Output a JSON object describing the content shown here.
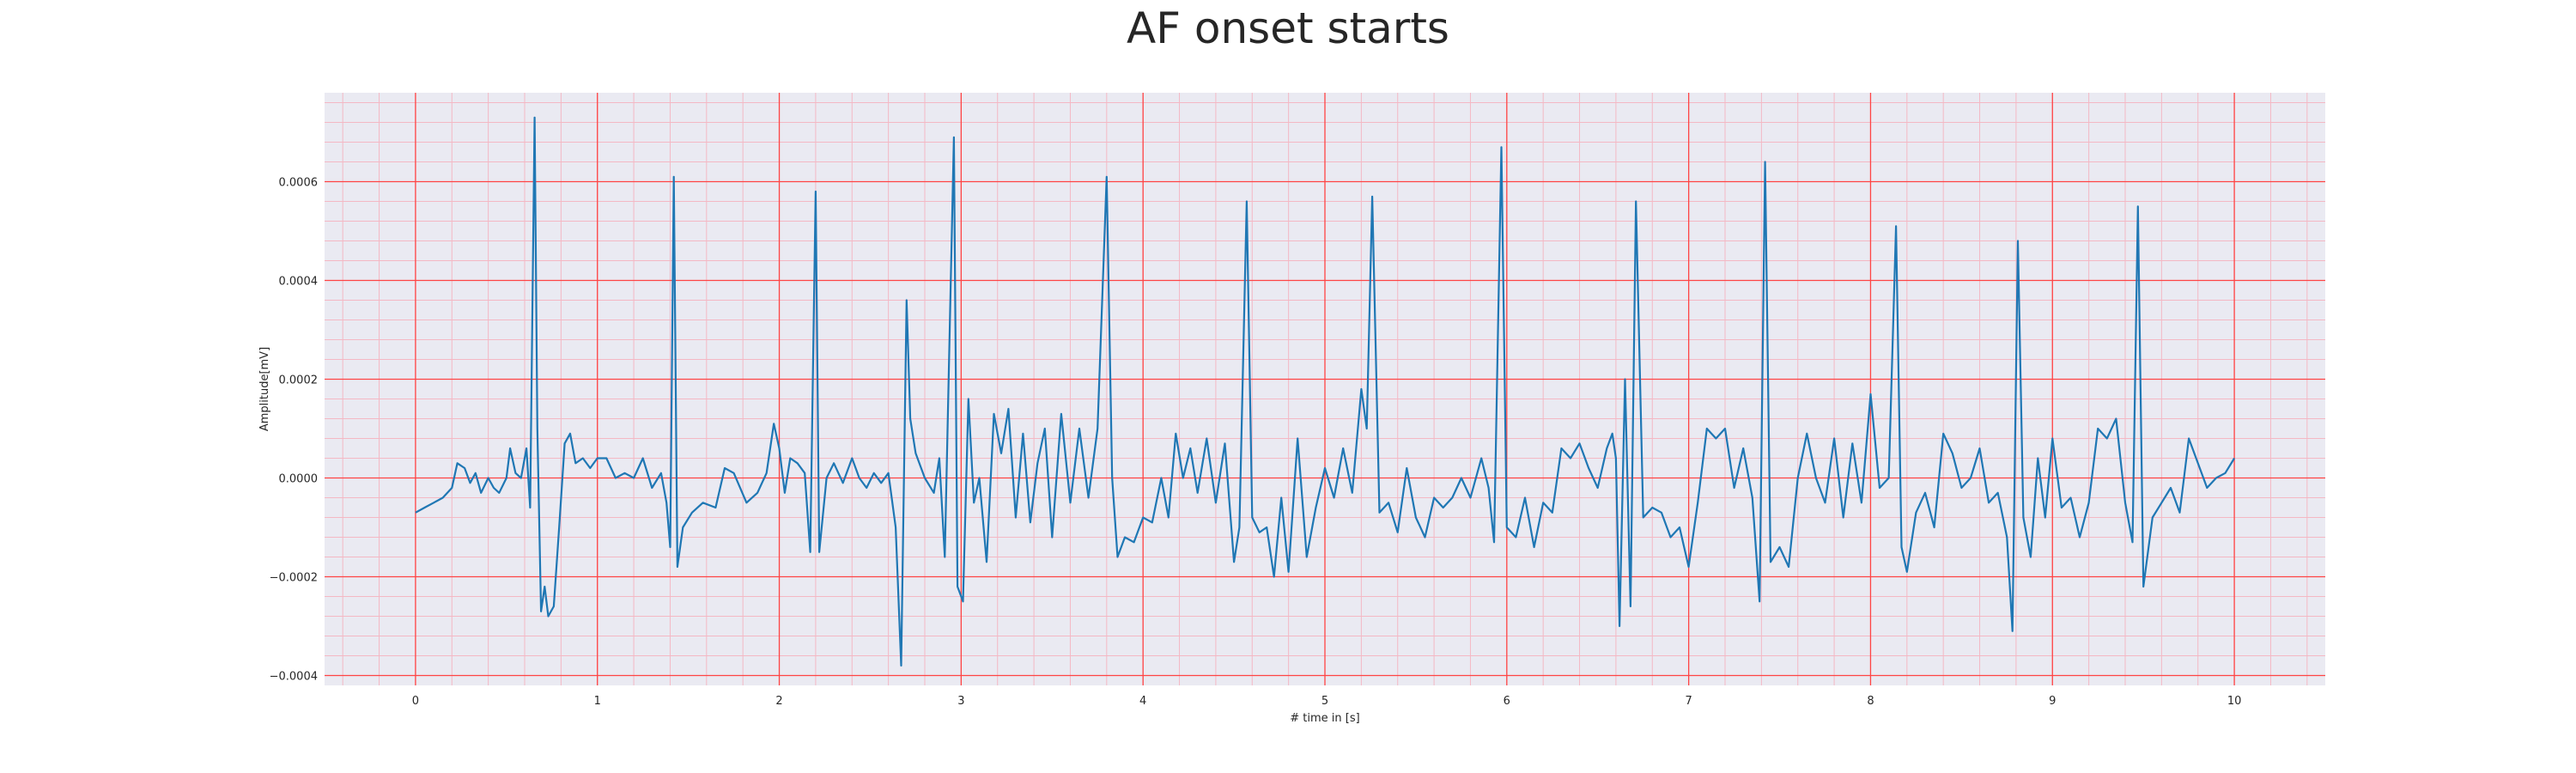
{
  "chart_data": {
    "type": "line",
    "title": "AF onset starts",
    "xlabel": "# time in [s]",
    "ylabel": "Amplitude[mV]",
    "xlim": [
      -0.5,
      10.5
    ],
    "ylim": [
      -0.00042,
      0.00078
    ],
    "x_ticks": [
      0,
      1,
      2,
      3,
      4,
      5,
      6,
      7,
      8,
      9,
      10
    ],
    "y_ticks": [
      -0.0004,
      -0.0002,
      0.0,
      0.0002,
      0.0004,
      0.0006
    ],
    "y_tick_labels": [
      "−0.0004",
      "−0.0002",
      "0.0000",
      "0.0002",
      "0.0004",
      "0.0006"
    ],
    "grid": true,
    "minor_grid": true,
    "colors": {
      "line": "#1f77b4",
      "major_grid": "#ff4444",
      "minor_grid": "#f4b8c4",
      "background": "#eaeaf2"
    },
    "series": [
      {
        "values": [
          [
            0.0,
            -7e-05
          ],
          [
            0.05,
            -6e-05
          ],
          [
            0.1,
            -5e-05
          ],
          [
            0.15,
            -4e-05
          ],
          [
            0.2,
            -2e-05
          ],
          [
            0.23,
            3e-05
          ],
          [
            0.27,
            2e-05
          ],
          [
            0.3,
            -1e-05
          ],
          [
            0.33,
            1e-05
          ],
          [
            0.36,
            -3e-05
          ],
          [
            0.4,
            0.0
          ],
          [
            0.43,
            -2e-05
          ],
          [
            0.46,
            -3e-05
          ],
          [
            0.5,
            0.0
          ],
          [
            0.52,
            6e-05
          ],
          [
            0.55,
            1e-05
          ],
          [
            0.58,
            0.0
          ],
          [
            0.61,
            6e-05
          ],
          [
            0.63,
            -6e-05
          ],
          [
            0.655,
            0.00073
          ],
          [
            0.67,
            0.0001
          ],
          [
            0.69,
            -0.00027
          ],
          [
            0.71,
            -0.00022
          ],
          [
            0.73,
            -0.00028
          ],
          [
            0.76,
            -0.00026
          ],
          [
            0.79,
            -0.0001
          ],
          [
            0.82,
            7e-05
          ],
          [
            0.85,
            9e-05
          ],
          [
            0.88,
            3e-05
          ],
          [
            0.92,
            4e-05
          ],
          [
            0.96,
            2e-05
          ],
          [
            1.0,
            4e-05
          ],
          [
            1.05,
            4e-05
          ],
          [
            1.1,
            0.0
          ],
          [
            1.15,
            1e-05
          ],
          [
            1.2,
            0.0
          ],
          [
            1.25,
            4e-05
          ],
          [
            1.3,
            -2e-05
          ],
          [
            1.35,
            1e-05
          ],
          [
            1.38,
            -5e-05
          ],
          [
            1.4,
            -0.00014
          ],
          [
            1.42,
            0.00061
          ],
          [
            1.44,
            -0.00018
          ],
          [
            1.47,
            -0.0001
          ],
          [
            1.52,
            -7e-05
          ],
          [
            1.58,
            -5e-05
          ],
          [
            1.65,
            -6e-05
          ],
          [
            1.7,
            2e-05
          ],
          [
            1.75,
            1e-05
          ],
          [
            1.82,
            -5e-05
          ],
          [
            1.88,
            -3e-05
          ],
          [
            1.93,
            1e-05
          ],
          [
            1.97,
            0.00011
          ],
          [
            2.0,
            6e-05
          ],
          [
            2.03,
            -3e-05
          ],
          [
            2.06,
            4e-05
          ],
          [
            2.1,
            3e-05
          ],
          [
            2.14,
            1e-05
          ],
          [
            2.17,
            -0.00015
          ],
          [
            2.2,
            0.00058
          ],
          [
            2.22,
            -0.00015
          ],
          [
            2.26,
            0.0
          ],
          [
            2.3,
            3e-05
          ],
          [
            2.35,
            -1e-05
          ],
          [
            2.4,
            4e-05
          ],
          [
            2.44,
            0.0
          ],
          [
            2.48,
            -2e-05
          ],
          [
            2.52,
            1e-05
          ],
          [
            2.56,
            -1e-05
          ],
          [
            2.6,
            1e-05
          ],
          [
            2.64,
            -0.0001
          ],
          [
            2.67,
            -0.00038
          ],
          [
            2.7,
            0.00036
          ],
          [
            2.72,
            0.00012
          ],
          [
            2.75,
            5e-05
          ],
          [
            2.8,
            0.0
          ],
          [
            2.85,
            -3e-05
          ],
          [
            2.88,
            4e-05
          ],
          [
            2.91,
            -0.00016
          ],
          [
            2.96,
            0.00069
          ],
          [
            2.98,
            -0.00022
          ],
          [
            3.01,
            -0.00025
          ],
          [
            3.04,
            0.00016
          ],
          [
            3.07,
            -5e-05
          ],
          [
            3.1,
            0.0
          ],
          [
            3.14,
            -0.00017
          ],
          [
            3.18,
            0.00013
          ],
          [
            3.22,
            5e-05
          ],
          [
            3.26,
            0.00014
          ],
          [
            3.3,
            -8e-05
          ],
          [
            3.34,
            9e-05
          ],
          [
            3.38,
            -9e-05
          ],
          [
            3.42,
            3e-05
          ],
          [
            3.46,
            0.0001
          ],
          [
            3.5,
            -0.00012
          ],
          [
            3.55,
            0.00013
          ],
          [
            3.6,
            -5e-05
          ],
          [
            3.65,
            0.0001
          ],
          [
            3.7,
            -4e-05
          ],
          [
            3.75,
            0.0001
          ],
          [
            3.8,
            0.00061
          ],
          [
            3.83,
            0.0
          ],
          [
            3.86,
            -0.00016
          ],
          [
            3.9,
            -0.00012
          ],
          [
            3.95,
            -0.00013
          ],
          [
            4.0,
            -8e-05
          ],
          [
            4.05,
            -9e-05
          ],
          [
            4.1,
            0.0
          ],
          [
            4.14,
            -8e-05
          ],
          [
            4.18,
            9e-05
          ],
          [
            4.22,
            0.0
          ],
          [
            4.26,
            6e-05
          ],
          [
            4.3,
            -3e-05
          ],
          [
            4.35,
            8e-05
          ],
          [
            4.4,
            -5e-05
          ],
          [
            4.45,
            7e-05
          ],
          [
            4.5,
            -0.00017
          ],
          [
            4.53,
            -0.0001
          ],
          [
            4.57,
            0.00056
          ],
          [
            4.6,
            -8e-05
          ],
          [
            4.64,
            -0.00011
          ],
          [
            4.68,
            -0.0001
          ],
          [
            4.72,
            -0.0002
          ],
          [
            4.76,
            -4e-05
          ],
          [
            4.8,
            -0.00019
          ],
          [
            4.85,
            8e-05
          ],
          [
            4.9,
            -0.00016
          ],
          [
            4.95,
            -6e-05
          ],
          [
            5.0,
            2e-05
          ],
          [
            5.05,
            -4e-05
          ],
          [
            5.1,
            6e-05
          ],
          [
            5.15,
            -3e-05
          ],
          [
            5.2,
            0.00018
          ],
          [
            5.23,
            0.0001
          ],
          [
            5.26,
            0.00057
          ],
          [
            5.3,
            -7e-05
          ],
          [
            5.35,
            -5e-05
          ],
          [
            5.4,
            -0.00011
          ],
          [
            5.45,
            2e-05
          ],
          [
            5.5,
            -8e-05
          ],
          [
            5.55,
            -0.00012
          ],
          [
            5.6,
            -4e-05
          ],
          [
            5.65,
            -6e-05
          ],
          [
            5.7,
            -4e-05
          ],
          [
            5.75,
            0.0
          ],
          [
            5.8,
            -4e-05
          ],
          [
            5.86,
            4e-05
          ],
          [
            5.9,
            -2e-05
          ],
          [
            5.93,
            -0.00013
          ],
          [
            5.97,
            0.00067
          ],
          [
            6.0,
            -0.0001
          ],
          [
            6.05,
            -0.00012
          ],
          [
            6.1,
            -4e-05
          ],
          [
            6.15,
            -0.00014
          ],
          [
            6.2,
            -5e-05
          ],
          [
            6.25,
            -7e-05
          ],
          [
            6.3,
            6e-05
          ],
          [
            6.35,
            4e-05
          ],
          [
            6.4,
            7e-05
          ],
          [
            6.45,
            2e-05
          ],
          [
            6.5,
            -2e-05
          ],
          [
            6.55,
            6e-05
          ],
          [
            6.58,
            9e-05
          ],
          [
            6.6,
            4e-05
          ],
          [
            6.62,
            -0.0003
          ],
          [
            6.65,
            0.0002
          ],
          [
            6.68,
            -0.00026
          ],
          [
            6.71,
            0.00056
          ],
          [
            6.75,
            -8e-05
          ],
          [
            6.8,
            -6e-05
          ],
          [
            6.85,
            -7e-05
          ],
          [
            6.9,
            -0.00012
          ],
          [
            6.95,
            -0.0001
          ],
          [
            7.0,
            -0.00018
          ],
          [
            7.05,
            -5e-05
          ],
          [
            7.1,
            0.0001
          ],
          [
            7.15,
            8e-05
          ],
          [
            7.2,
            0.0001
          ],
          [
            7.25,
            -2e-05
          ],
          [
            7.3,
            6e-05
          ],
          [
            7.35,
            -4e-05
          ],
          [
            7.39,
            -0.00025
          ],
          [
            7.42,
            0.00064
          ],
          [
            7.45,
            -0.00017
          ],
          [
            7.5,
            -0.00014
          ],
          [
            7.55,
            -0.00018
          ],
          [
            7.6,
            0.0
          ],
          [
            7.65,
            9e-05
          ],
          [
            7.7,
            0.0
          ],
          [
            7.75,
            -5e-05
          ],
          [
            7.8,
            8e-05
          ],
          [
            7.85,
            -8e-05
          ],
          [
            7.9,
            7e-05
          ],
          [
            7.95,
            -5e-05
          ],
          [
            8.0,
            0.00017
          ],
          [
            8.05,
            -2e-05
          ],
          [
            8.1,
            0.0
          ],
          [
            8.14,
            0.00051
          ],
          [
            8.17,
            -0.00014
          ],
          [
            8.2,
            -0.00019
          ],
          [
            8.25,
            -7e-05
          ],
          [
            8.3,
            -3e-05
          ],
          [
            8.35,
            -0.0001
          ],
          [
            8.4,
            9e-05
          ],
          [
            8.45,
            5e-05
          ],
          [
            8.5,
            -2e-05
          ],
          [
            8.55,
            0.0
          ],
          [
            8.6,
            6e-05
          ],
          [
            8.65,
            -5e-05
          ],
          [
            8.7,
            -3e-05
          ],
          [
            8.75,
            -0.00012
          ],
          [
            8.78,
            -0.00031
          ],
          [
            8.81,
            0.00048
          ],
          [
            8.84,
            -8e-05
          ],
          [
            8.88,
            -0.00016
          ],
          [
            8.92,
            4e-05
          ],
          [
            8.96,
            -8e-05
          ],
          [
            9.0,
            8e-05
          ],
          [
            9.05,
            -6e-05
          ],
          [
            9.1,
            -4e-05
          ],
          [
            9.15,
            -0.00012
          ],
          [
            9.2,
            -5e-05
          ],
          [
            9.25,
            0.0001
          ],
          [
            9.3,
            8e-05
          ],
          [
            9.35,
            0.00012
          ],
          [
            9.4,
            -5e-05
          ],
          [
            9.44,
            -0.00013
          ],
          [
            9.47,
            0.00055
          ],
          [
            9.5,
            -0.00022
          ],
          [
            9.55,
            -8e-05
          ],
          [
            9.6,
            -5e-05
          ],
          [
            9.65,
            -2e-05
          ],
          [
            9.7,
            -7e-05
          ],
          [
            9.75,
            8e-05
          ],
          [
            9.8,
            3e-05
          ],
          [
            9.85,
            -2e-05
          ],
          [
            9.9,
            0.0
          ],
          [
            9.95,
            1e-05
          ],
          [
            10.0,
            4e-05
          ]
        ]
      }
    ]
  }
}
